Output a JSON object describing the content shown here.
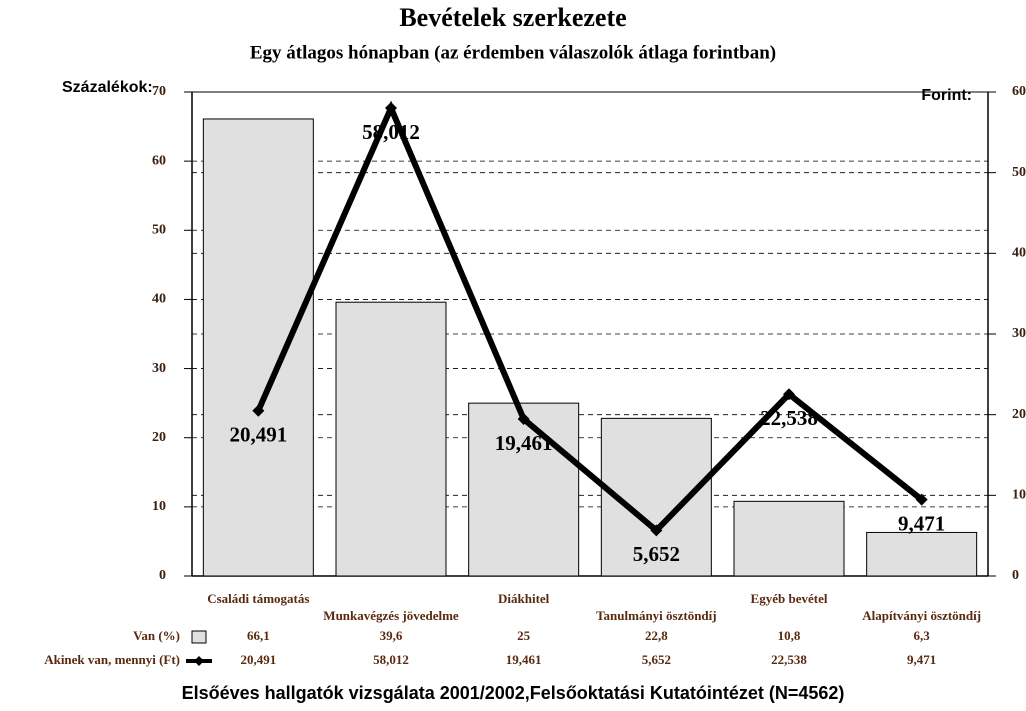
{
  "chart_data": {
    "type": "bar_line",
    "title": "Bevételek szerkezete",
    "subtitle": "Egy átlagos hónapban (az érdemben válaszolók átlaga forintban)",
    "y_label": "Százalékok:",
    "y2_label": "Forint:",
    "footer": "Elsőéves hallgatók vizsgálata 2001/2002,Felsőoktatási Kutatóintézet  (N=4562)",
    "categories": [
      "Családi támogatás",
      "Munkavégzés jövedelme",
      "Diákhitel",
      "Tanulmányi ösztöndíj",
      "Egyéb bevétel",
      "Alapítványi ösztöndíj"
    ],
    "series": [
      {
        "name": "Van (%)",
        "type": "bar",
        "color": "#e0e0e0",
        "values": [
          66.1,
          39.6,
          25,
          22.8,
          10.8,
          6.3
        ],
        "value_labels": [
          "66,1",
          "39,6",
          "25",
          "22,8",
          "10,8",
          "6,3"
        ]
      },
      {
        "name": "Akinek van, mennyi (Ft)",
        "type": "line",
        "axis": "y2",
        "color": "#000000",
        "values": [
          20.491,
          58.012,
          19.461,
          5.652,
          22.538,
          9.471
        ],
        "value_labels": [
          "20,491",
          "58,012",
          "19,461",
          "5,652",
          "22,538",
          "9,471"
        ]
      }
    ],
    "ylim": [
      0,
      70
    ],
    "yticks": [
      0,
      10,
      20,
      30,
      40,
      50,
      60,
      70
    ],
    "y2lim": [
      0,
      60
    ],
    "y2ticks": [
      0,
      10,
      20,
      30,
      40,
      50,
      60
    ],
    "grid": true
  }
}
